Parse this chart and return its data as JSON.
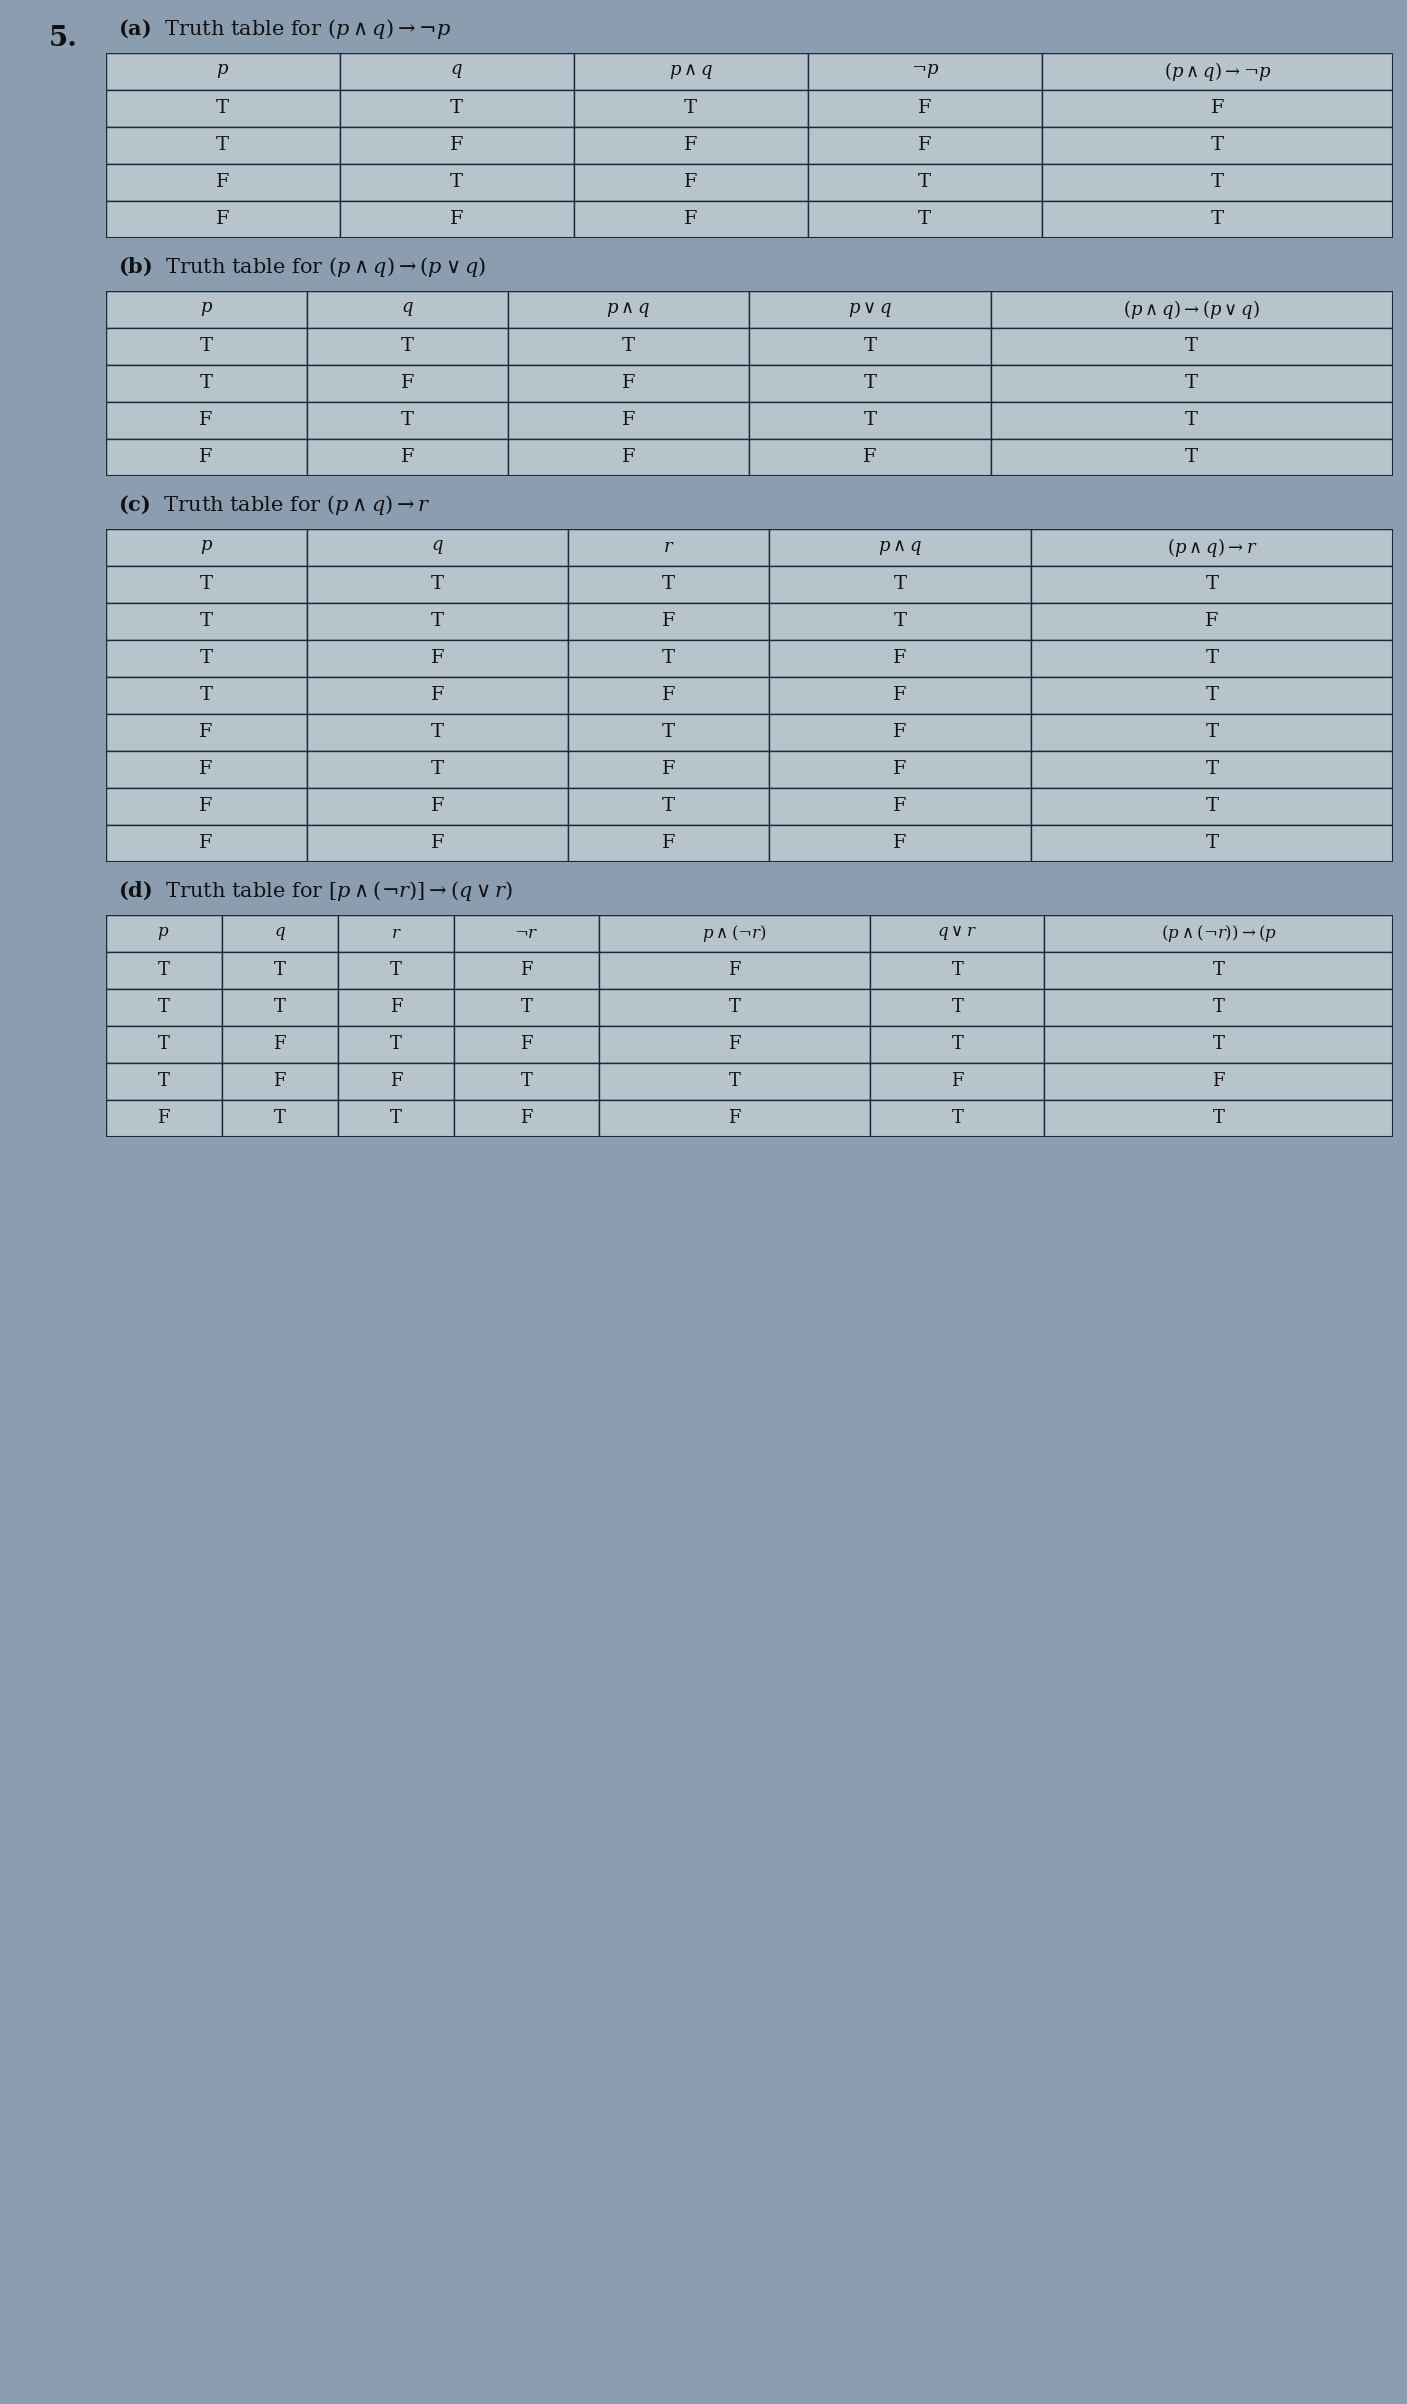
{
  "bg_color": "#8a9eb0",
  "cell_color": "#b8c4cc",
  "cell_color2": "#a8b4bc",
  "border_color": "#1a2a3a",
  "text_color": "#111111",
  "white_bg": "#e8eaec",
  "dark_bg": "#7a8e9e",
  "table_a": {
    "title": "(a)  Truth table for $(p \\wedge q) \\rightarrow \\neg p$",
    "headers": [
      "p",
      "q",
      "p\\wedge q",
      "\\neg p",
      "(p\\wedge q)\\rightarrow \\neg p"
    ],
    "rows": [
      [
        "T",
        "T",
        "T",
        "F",
        "F"
      ],
      [
        "T",
        "F",
        "F",
        "F",
        "T"
      ],
      [
        "F",
        "T",
        "F",
        "T",
        "T"
      ],
      [
        "F",
        "F",
        "F",
        "T",
        "T"
      ]
    ],
    "col_widths": [
      1.0,
      1.0,
      1.0,
      1.0,
      1.5
    ]
  },
  "table_b": {
    "title": "(b)  Truth table for $(p \\wedge q) \\rightarrow (p \\vee q)$",
    "headers": [
      "p",
      "q",
      "p\\wedge q",
      "p\\vee q",
      "(p\\wedge q)\\rightarrow (p\\vee q)"
    ],
    "rows": [
      [
        "T",
        "T",
        "T",
        "T",
        "T"
      ],
      [
        "T",
        "F",
        "F",
        "T",
        "T"
      ],
      [
        "F",
        "T",
        "F",
        "T",
        "T"
      ],
      [
        "F",
        "F",
        "F",
        "F",
        "T"
      ]
    ],
    "col_widths": [
      1.0,
      1.0,
      1.2,
      1.2,
      2.0
    ]
  },
  "table_c": {
    "title": "(c)  Truth table for $(p \\wedge q) \\rightarrow r$",
    "headers": [
      "p",
      "q",
      "r",
      "p\\wedge q",
      "(p\\wedge q)\\rightarrow r"
    ],
    "rows": [
      [
        "T",
        "T",
        "T",
        "T",
        "T"
      ],
      [
        "T",
        "T",
        "F",
        "T",
        "F"
      ],
      [
        "T",
        "F",
        "T",
        "F",
        "T"
      ],
      [
        "T",
        "F",
        "F",
        "F",
        "T"
      ],
      [
        "F",
        "T",
        "T",
        "F",
        "T"
      ],
      [
        "F",
        "T",
        "F",
        "F",
        "T"
      ],
      [
        "F",
        "F",
        "T",
        "F",
        "T"
      ],
      [
        "F",
        "F",
        "F",
        "F",
        "T"
      ]
    ],
    "col_widths": [
      1.0,
      1.3,
      1.0,
      1.3,
      1.8
    ]
  },
  "table_d": {
    "title": "(d)  Truth table for $[p \\wedge (\\neg r)] \\rightarrow (q \\vee r)$",
    "headers": [
      "p",
      "q",
      "r",
      "\\neg r",
      "p\\wedge (\\neg r)",
      "q\\vee r",
      "(p\\wedge (\\neg r))\\rightarrow(p"
    ],
    "rows": [
      [
        "T",
        "T",
        "T",
        "F",
        "F",
        "T",
        "T"
      ],
      [
        "T",
        "T",
        "F",
        "T",
        "T",
        "T",
        "T"
      ],
      [
        "T",
        "F",
        "T",
        "F",
        "F",
        "T",
        "T"
      ],
      [
        "T",
        "F",
        "F",
        "T",
        "T",
        "F",
        "F"
      ],
      [
        "F",
        "T",
        "T",
        "F",
        "F",
        "T",
        "T"
      ]
    ],
    "col_widths": [
      0.6,
      0.6,
      0.6,
      0.75,
      1.4,
      0.9,
      1.8
    ]
  },
  "fig_width": 14.07,
  "fig_height": 24.04
}
